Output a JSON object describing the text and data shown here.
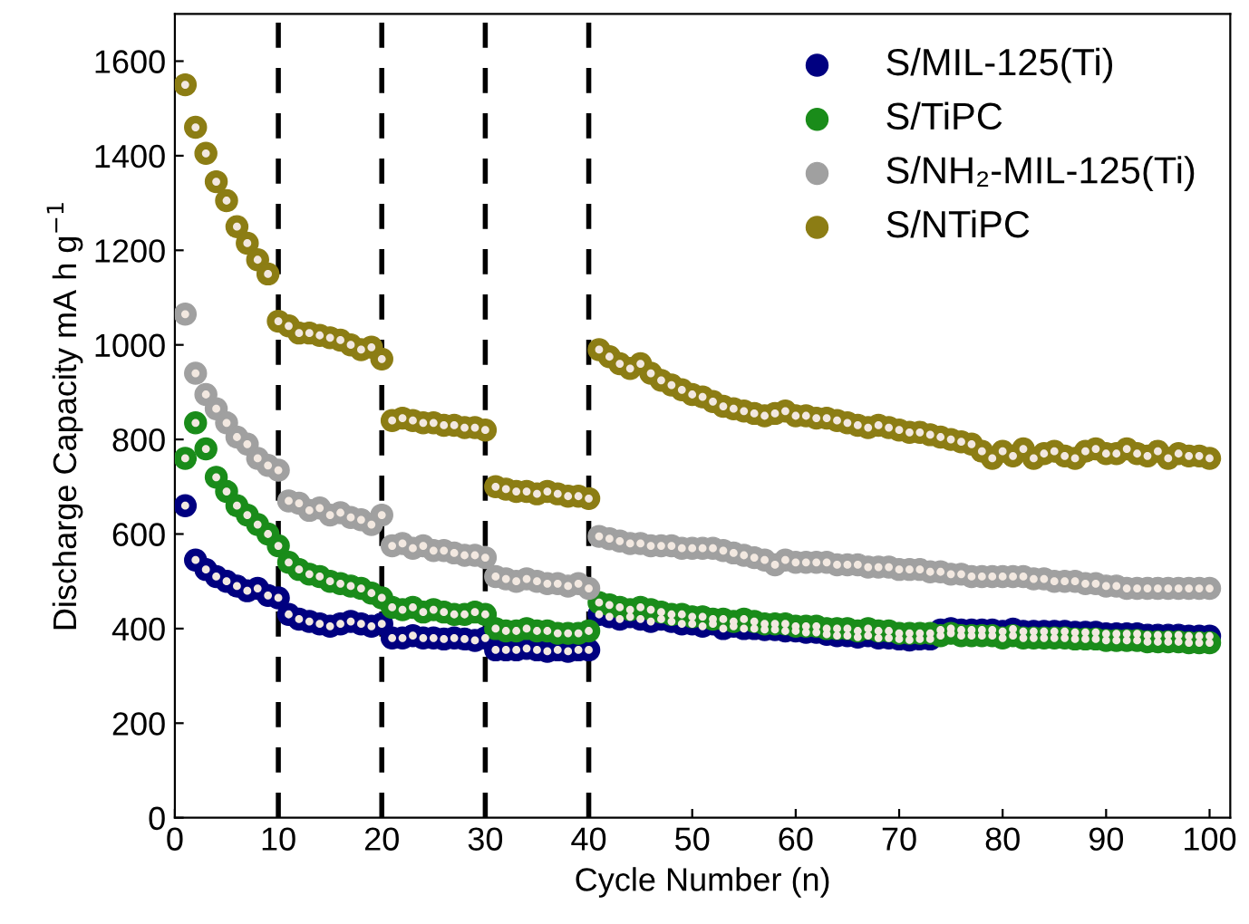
{
  "chart_data": {
    "type": "scatter",
    "xlabel": "Cycle Number (n)",
    "ylabel": "Discharge Capacity mA h g$^{−1}$",
    "x": [
      1,
      2,
      3,
      4,
      5,
      6,
      7,
      8,
      9,
      10,
      11,
      12,
      13,
      14,
      15,
      16,
      17,
      18,
      19,
      20,
      21,
      22,
      23,
      24,
      25,
      26,
      27,
      28,
      29,
      30,
      31,
      32,
      33,
      34,
      35,
      36,
      37,
      38,
      39,
      40,
      41,
      42,
      43,
      44,
      45,
      46,
      47,
      48,
      49,
      50,
      51,
      52,
      53,
      54,
      55,
      56,
      57,
      58,
      59,
      60,
      61,
      62,
      63,
      64,
      65,
      66,
      67,
      68,
      69,
      70,
      71,
      72,
      73,
      74,
      75,
      76,
      77,
      78,
      79,
      80,
      81,
      82,
      83,
      84,
      85,
      86,
      87,
      88,
      89,
      90,
      91,
      92,
      93,
      94,
      95,
      96,
      97,
      98,
      99,
      100
    ],
    "xlim": [
      0,
      102
    ],
    "xticks": [
      0,
      10,
      20,
      30,
      40,
      50,
      60,
      70,
      80,
      90,
      100
    ],
    "ylim": [
      0,
      1700
    ],
    "yticks": [
      0,
      200,
      400,
      600,
      800,
      1000,
      1200,
      1400,
      1600
    ],
    "grid": false,
    "legend": "top right",
    "marker": "circle",
    "ref_lines": [
      {
        "axis": "x",
        "value": 10,
        "color": "#000000",
        "line_style": "dashed"
      },
      {
        "axis": "x",
        "value": 20,
        "color": "#000000",
        "line_style": "dashed"
      },
      {
        "axis": "x",
        "value": 30,
        "color": "#000000",
        "line_style": "dashed"
      },
      {
        "axis": "x",
        "value": 40,
        "color": "#000000",
        "line_style": "dashed"
      }
    ],
    "series": [
      {
        "name": "S/MIL-125(Ti)",
        "color": "#000080",
        "values": [
          660,
          545,
          525,
          510,
          500,
          490,
          480,
          485,
          470,
          465,
          430,
          420,
          415,
          410,
          405,
          410,
          415,
          410,
          405,
          410,
          380,
          380,
          385,
          380,
          380,
          378,
          380,
          378,
          375,
          380,
          355,
          355,
          355,
          358,
          355,
          352,
          355,
          352,
          355,
          355,
          430,
          425,
          420,
          425,
          420,
          415,
          420,
          415,
          410,
          410,
          405,
          410,
          400,
          405,
          400,
          400,
          398,
          398,
          395,
          395,
          392,
          392,
          388,
          385,
          385,
          382,
          385,
          380,
          380,
          378,
          376,
          378,
          378,
          397,
          400,
          397,
          397,
          397,
          397,
          394,
          399,
          394,
          394,
          394,
          394,
          394,
          392,
          392,
          392,
          389,
          389,
          389,
          389,
          386,
          386,
          386,
          386,
          384,
          384,
          384
        ]
      },
      {
        "name": "S/TiPC",
        "color": "#1a8c1a",
        "values": [
          760,
          835,
          780,
          720,
          690,
          660,
          640,
          620,
          600,
          575,
          540,
          525,
          515,
          510,
          500,
          495,
          490,
          485,
          475,
          465,
          445,
          440,
          445,
          435,
          440,
          435,
          430,
          430,
          435,
          430,
          400,
          395,
          395,
          400,
          395,
          395,
          390,
          390,
          390,
          395,
          455,
          450,
          445,
          440,
          445,
          440,
          435,
          430,
          430,
          425,
          425,
          420,
          420,
          415,
          420,
          415,
          410,
          410,
          410,
          405,
          405,
          405,
          400,
          400,
          400,
          395,
          400,
          395,
          395,
          390,
          390,
          390,
          390,
          385,
          390,
          385,
          385,
          385,
          385,
          380,
          385,
          380,
          380,
          380,
          380,
          380,
          378,
          378,
          378,
          375,
          375,
          375,
          375,
          372,
          372,
          372,
          372,
          370,
          370,
          370
        ]
      },
      {
        "name": "S/NH₂-MIL-125(Ti)",
        "color": "#a0a0a0",
        "values": [
          1065,
          940,
          895,
          865,
          835,
          805,
          790,
          760,
          745,
          735,
          670,
          665,
          650,
          655,
          640,
          645,
          635,
          630,
          620,
          640,
          575,
          580,
          570,
          575,
          565,
          565,
          560,
          555,
          555,
          550,
          510,
          505,
          500,
          505,
          500,
          495,
          495,
          490,
          495,
          485,
          595,
          590,
          585,
          580,
          580,
          575,
          575,
          575,
          570,
          570,
          570,
          570,
          565,
          560,
          555,
          550,
          545,
          535,
          545,
          540,
          540,
          540,
          540,
          535,
          535,
          535,
          530,
          530,
          530,
          525,
          525,
          525,
          520,
          520,
          515,
          515,
          510,
          510,
          510,
          510,
          510,
          510,
          505,
          505,
          500,
          500,
          500,
          495,
          495,
          490,
          490,
          485,
          485,
          485,
          485,
          485,
          485,
          485,
          485,
          485
        ]
      },
      {
        "name": "S/NTiPC",
        "color": "#8c7d14",
        "values": [
          1550,
          1460,
          1405,
          1345,
          1305,
          1250,
          1215,
          1180,
          1150,
          1050,
          1040,
          1025,
          1025,
          1020,
          1015,
          1010,
          1000,
          990,
          995,
          970,
          840,
          845,
          840,
          835,
          835,
          830,
          830,
          825,
          825,
          820,
          700,
          695,
          690,
          690,
          685,
          690,
          685,
          680,
          680,
          675,
          990,
          975,
          960,
          950,
          960,
          940,
          925,
          915,
          905,
          895,
          890,
          880,
          870,
          865,
          860,
          855,
          850,
          855,
          860,
          850,
          850,
          845,
          845,
          840,
          835,
          830,
          825,
          830,
          825,
          820,
          815,
          815,
          810,
          805,
          800,
          795,
          790,
          775,
          760,
          775,
          765,
          780,
          760,
          770,
          775,
          765,
          760,
          775,
          780,
          770,
          770,
          780,
          770,
          765,
          775,
          760,
          770,
          765,
          765,
          760
        ]
      }
    ]
  }
}
